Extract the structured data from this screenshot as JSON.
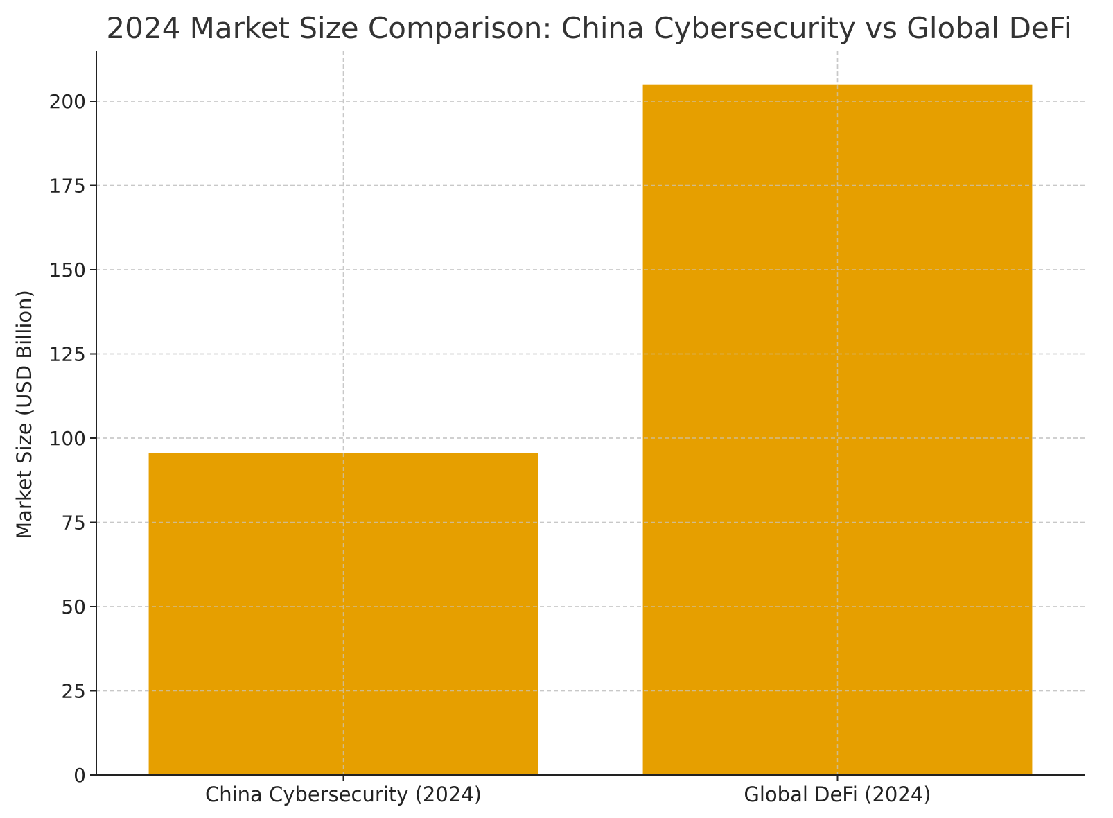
{
  "chart_data": {
    "type": "bar",
    "title": "2024 Market Size Comparison: China Cybersecurity vs Global DeFi",
    "xlabel": "",
    "ylabel": "Market Size (USD Billion)",
    "categories": [
      "China Cybersecurity (2024)",
      "Global DeFi (2024)"
    ],
    "values": [
      95.5,
      205
    ],
    "ylim": [
      0,
      215
    ],
    "yticks": [
      0,
      25,
      50,
      75,
      100,
      125,
      150,
      175,
      200
    ],
    "grid": true,
    "bar_color": "#E69F00"
  }
}
